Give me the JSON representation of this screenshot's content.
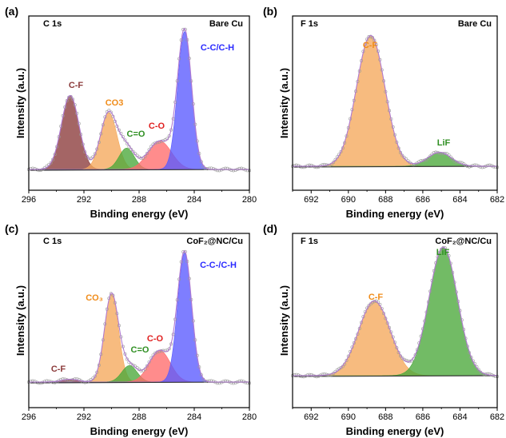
{
  "chart_data": [
    {
      "type": "area",
      "panel": "(a)",
      "spectrum": "C 1s",
      "sample": "Bare Cu",
      "xlabel": "Binding energy (eV)",
      "ylabel": "Intensity (a.u.)",
      "xlim": [
        296,
        280
      ],
      "xticks": [
        "296",
        "292",
        "288",
        "284",
        "280"
      ],
      "y_relative": [
        0,
        1.0
      ],
      "series": [
        {
          "name": "C-F",
          "center": 293.0,
          "fwhm": 1.5,
          "height": 0.52,
          "color": "#8b3a3a"
        },
        {
          "name": "CO3",
          "center": 290.2,
          "fwhm": 1.4,
          "height": 0.4,
          "color": "#f5a85b"
        },
        {
          "name": "C=O",
          "center": 288.9,
          "fwhm": 1.3,
          "height": 0.15,
          "color": "#4aa83a"
        },
        {
          "name": "C-O",
          "center": 286.5,
          "fwhm": 2.0,
          "height": 0.2,
          "color": "#ff6b6b"
        },
        {
          "name": "C-C/C-H",
          "center": 284.7,
          "fwhm": 1.2,
          "height": 0.97,
          "color": "#5a5aff"
        }
      ]
    },
    {
      "type": "area",
      "panel": "(b)",
      "spectrum": "F 1s",
      "sample": "Bare Cu",
      "xlabel": "Binding energy (eV)",
      "ylabel": "Intensity (a.u.)",
      "xlim": [
        693,
        682
      ],
      "xticks": [
        "692",
        "690",
        "688",
        "686",
        "684",
        "682"
      ],
      "y_relative": [
        0,
        1.0
      ],
      "series": [
        {
          "name": "C-F",
          "center": 688.8,
          "fwhm": 1.8,
          "height": 0.94,
          "color": "#f5a85b"
        },
        {
          "name": "LiF",
          "center": 685.1,
          "fwhm": 1.5,
          "height": 0.1,
          "color": "#4aa83a"
        }
      ]
    },
    {
      "type": "area",
      "panel": "(c)",
      "spectrum": "C 1s",
      "sample": "CoF₂@NC/Cu",
      "xlabel": "Binding energy (eV)",
      "ylabel": "Intensity (a.u.)",
      "xlim": [
        296,
        280
      ],
      "xticks": [
        "296",
        "292",
        "288",
        "284",
        "280"
      ],
      "y_relative": [
        0,
        1.0
      ],
      "series": [
        {
          "name": "C-F",
          "center": 293.0,
          "fwhm": 1.5,
          "height": 0.02,
          "color": "#8b3a3a"
        },
        {
          "name": "CO₃",
          "center": 290.0,
          "fwhm": 1.2,
          "height": 0.64,
          "color": "#f5a85b"
        },
        {
          "name": "C=O",
          "center": 288.7,
          "fwhm": 1.3,
          "height": 0.12,
          "color": "#4aa83a"
        },
        {
          "name": "C-O",
          "center": 286.5,
          "fwhm": 1.8,
          "height": 0.23,
          "color": "#ff6b6b"
        },
        {
          "name": "C-C-/C-H",
          "center": 284.7,
          "fwhm": 1.2,
          "height": 0.94,
          "color": "#5a5aff"
        }
      ]
    },
    {
      "type": "area",
      "panel": "(d)",
      "spectrum": "F 1s",
      "sample": "CoF₂@NC/Cu",
      "xlabel": "Binding energy (eV)",
      "ylabel": "Intensity (a.u.)",
      "xlim": [
        693,
        682
      ],
      "xticks": [
        "692",
        "690",
        "688",
        "686",
        "684",
        "682"
      ],
      "y_relative": [
        0,
        1.0
      ],
      "series": [
        {
          "name": "C-F",
          "center": 688.6,
          "fwhm": 2.0,
          "height": 0.57,
          "color": "#f5a85b"
        },
        {
          "name": "LiF",
          "center": 684.9,
          "fwhm": 1.8,
          "height": 0.98,
          "color": "#4aa83a"
        }
      ]
    }
  ],
  "panels": [
    {
      "letter": "(a)",
      "spectrum": "C 1s",
      "sample": "Bare Cu",
      "xlabel": "Binding energy (eV)",
      "ylabel": "Intensity (a.u.)"
    },
    {
      "letter": "(b)",
      "spectrum": "F 1s",
      "sample": "Bare Cu",
      "xlabel": "Binding energy (eV)",
      "ylabel": "Intensity (a.u.)"
    },
    {
      "letter": "(c)",
      "spectrum": "C 1s",
      "sample": "CoF₂@NC/Cu",
      "xlabel": "Binding energy (eV)",
      "ylabel": "Intensity (a.u.)"
    },
    {
      "letter": "(d)",
      "spectrum": "F 1s",
      "sample": "CoF₂@NC/Cu",
      "xlabel": "Binding energy (eV)",
      "ylabel": "Intensity (a.u.)"
    }
  ],
  "colors": {
    "envelope": "#b07ad0",
    "raw_data": "#9a9a9a",
    "background": "#333333"
  }
}
